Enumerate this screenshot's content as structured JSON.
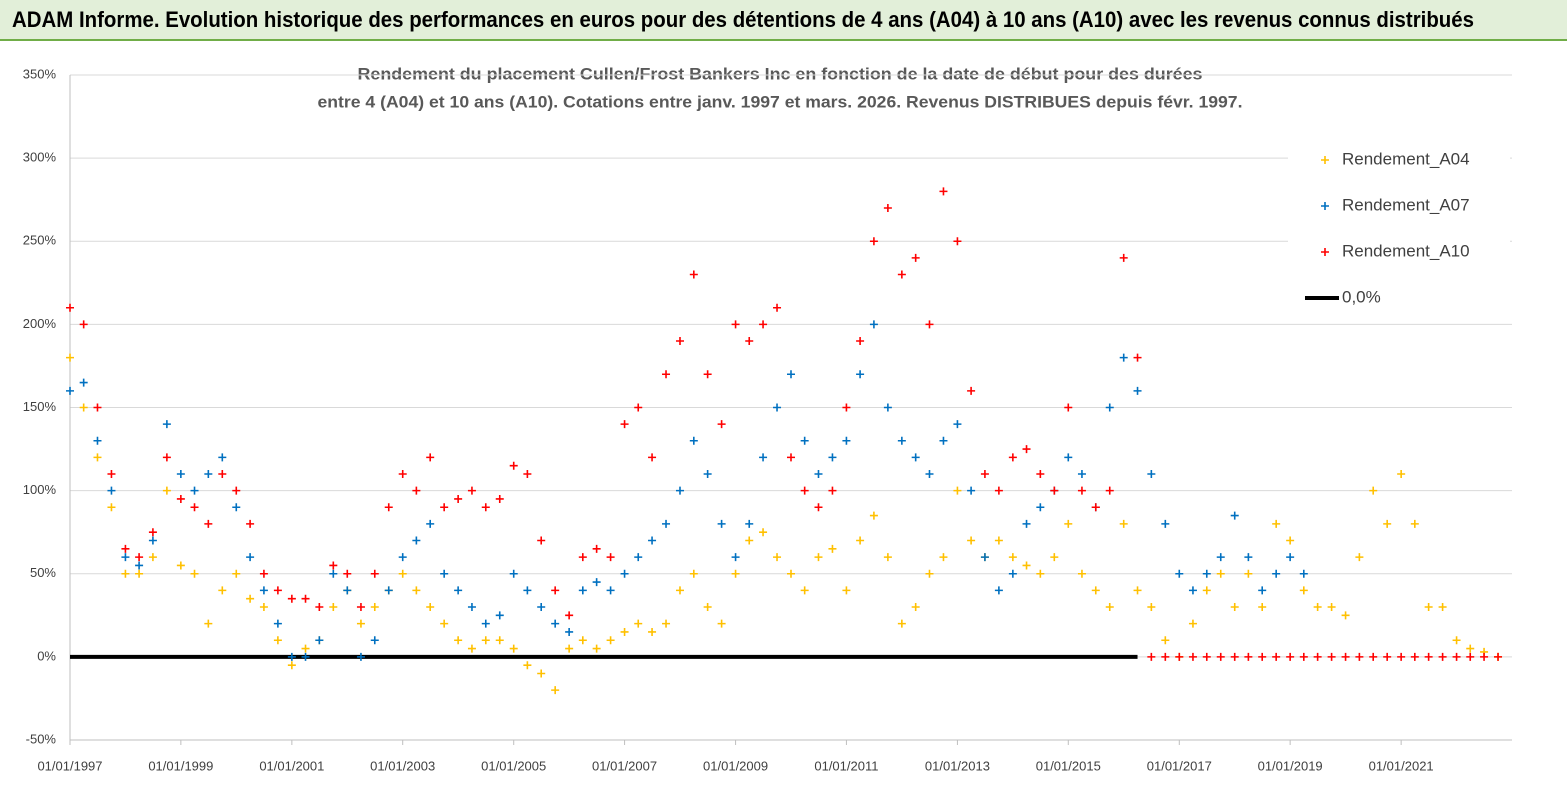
{
  "header": {
    "title": "ADAM Informe. Evolution historique des performances en euros pour des détentions de 4 ans (A04) à 10 ans (A10) avec les revenus connus distribués"
  },
  "chart_data": {
    "type": "scatter",
    "title": [
      "Rendement du placement Cullen/Frost Bankers Inc en fonction de la date de début pour des durées",
      "entre 4 (A04) et 10 ans (A10).  Cotations entre janv. 1997 et mars. 2026. Revenus DISTRIBUES depuis févr. 1997."
    ],
    "xlim": [
      "1997-01-01",
      "2023-01-01"
    ],
    "xticks": [
      {
        "value": "1997-01-01",
        "label": "01/01/1997"
      },
      {
        "value": "1999-01-01",
        "label": "01/01/1999"
      },
      {
        "value": "2001-01-01",
        "label": "01/01/2001"
      },
      {
        "value": "2003-01-01",
        "label": "01/01/2003"
      },
      {
        "value": "2005-01-01",
        "label": "01/01/2005"
      },
      {
        "value": "2007-01-01",
        "label": "01/01/2007"
      },
      {
        "value": "2009-01-01",
        "label": "01/01/2009"
      },
      {
        "value": "2011-01-01",
        "label": "01/01/2011"
      },
      {
        "value": "2013-01-01",
        "label": "01/01/2013"
      },
      {
        "value": "2015-01-01",
        "label": "01/01/2015"
      },
      {
        "value": "2017-01-01",
        "label": "01/01/2017"
      },
      {
        "value": "2019-01-01",
        "label": "01/01/2019"
      },
      {
        "value": "2021-01-01",
        "label": "01/01/2021"
      }
    ],
    "ylim": [
      -50,
      350
    ],
    "yticks": [
      {
        "value": -50,
        "label": "-50%"
      },
      {
        "value": 0,
        "label": "0%"
      },
      {
        "value": 50,
        "label": "50%"
      },
      {
        "value": 100,
        "label": "100%"
      },
      {
        "value": 150,
        "label": "150%"
      },
      {
        "value": 200,
        "label": "200%"
      },
      {
        "value": 250,
        "label": "250%"
      },
      {
        "value": 300,
        "label": "300%"
      },
      {
        "value": 350,
        "label": "350%"
      }
    ],
    "grid": true,
    "legend": "right",
    "x": [
      "1997-01-01",
      "1997-04-01",
      "1997-07-01",
      "1997-10-01",
      "1998-01-01",
      "1998-04-01",
      "1998-07-01",
      "1998-10-01",
      "1999-01-01",
      "1999-04-01",
      "1999-07-01",
      "1999-10-01",
      "2000-01-01",
      "2000-04-01",
      "2000-07-01",
      "2000-10-01",
      "2001-01-01",
      "2001-04-01",
      "2001-07-01",
      "2001-10-01",
      "2002-01-01",
      "2002-04-01",
      "2002-07-01",
      "2002-10-01",
      "2003-01-01",
      "2003-04-01",
      "2003-07-01",
      "2003-10-01",
      "2004-01-01",
      "2004-04-01",
      "2004-07-01",
      "2004-10-01",
      "2005-01-01",
      "2005-04-01",
      "2005-07-01",
      "2005-10-01",
      "2006-01-01",
      "2006-04-01",
      "2006-07-01",
      "2006-10-01",
      "2007-01-01",
      "2007-04-01",
      "2007-07-01",
      "2007-10-01",
      "2008-01-01",
      "2008-04-01",
      "2008-07-01",
      "2008-10-01",
      "2009-01-01",
      "2009-04-01",
      "2009-07-01",
      "2009-10-01",
      "2010-01-01",
      "2010-04-01",
      "2010-07-01",
      "2010-10-01",
      "2011-01-01",
      "2011-04-01",
      "2011-07-01",
      "2011-10-01",
      "2012-01-01",
      "2012-04-01",
      "2012-07-01",
      "2012-10-01",
      "2013-01-01",
      "2013-04-01",
      "2013-07-01",
      "2013-10-01",
      "2014-01-01",
      "2014-04-01",
      "2014-07-01",
      "2014-10-01",
      "2015-01-01",
      "2015-04-01",
      "2015-07-01",
      "2015-10-01",
      "2016-01-01",
      "2016-04-01",
      "2016-07-01",
      "2016-10-01",
      "2017-01-01",
      "2017-04-01",
      "2017-07-01",
      "2017-10-01",
      "2018-01-01",
      "2018-04-01",
      "2018-07-01",
      "2018-10-01",
      "2019-01-01",
      "2019-04-01",
      "2019-07-01",
      "2019-10-01",
      "2020-01-01",
      "2020-04-01",
      "2020-07-01",
      "2020-10-01",
      "2021-01-01",
      "2021-04-01",
      "2021-07-01",
      "2021-10-01",
      "2022-01-01",
      "2022-04-01",
      "2022-07-01",
      "2022-10-01"
    ],
    "series": [
      {
        "name": "Rendement_A04",
        "color": "#ffc000",
        "values": [
          180,
          150,
          120,
          90,
          50,
          50,
          60,
          100,
          55,
          50,
          20,
          40,
          50,
          35,
          30,
          10,
          -5,
          5,
          10,
          30,
          40,
          20,
          30,
          40,
          50,
          40,
          30,
          20,
          10,
          5,
          10,
          10,
          5,
          -5,
          -10,
          -20,
          5,
          10,
          5,
          10,
          15,
          20,
          15,
          20,
          40,
          50,
          30,
          20,
          50,
          70,
          75,
          60,
          50,
          40,
          60,
          65,
          40,
          70,
          85,
          60,
          20,
          30,
          50,
          60,
          100,
          70,
          60,
          70,
          60,
          55,
          50,
          60,
          80,
          50,
          40,
          30,
          80,
          40,
          30,
          10,
          0,
          20,
          40,
          50,
          30,
          50,
          30,
          80,
          70,
          40,
          30,
          30,
          25,
          60,
          100,
          80,
          110,
          80,
          30,
          30,
          10,
          5,
          3,
          0
        ]
      },
      {
        "name": "Rendement_A07",
        "color": "#0070c0",
        "values": [
          160,
          165,
          130,
          100,
          60,
          55,
          70,
          140,
          110,
          100,
          110,
          120,
          90,
          60,
          40,
          20,
          0,
          0,
          10,
          50,
          40,
          0,
          10,
          40,
          60,
          70,
          80,
          50,
          40,
          30,
          20,
          25,
          50,
          40,
          30,
          20,
          15,
          40,
          45,
          40,
          50,
          60,
          70,
          80,
          100,
          130,
          110,
          80,
          60,
          80,
          120,
          150,
          170,
          130,
          110,
          120,
          130,
          170,
          200,
          150,
          130,
          120,
          110,
          130,
          140,
          100,
          60,
          40,
          50,
          80,
          90,
          100,
          120,
          110,
          90,
          150,
          180,
          160,
          110,
          80,
          50,
          40,
          50,
          60,
          85,
          60,
          40,
          50,
          60,
          50,
          null,
          null,
          null,
          null,
          null,
          null,
          null,
          null,
          null,
          null,
          null,
          null,
          null,
          null
        ]
      },
      {
        "name": "Rendement_A10",
        "color": "#ff0000",
        "values": [
          210,
          200,
          150,
          110,
          65,
          60,
          75,
          120,
          95,
          90,
          80,
          110,
          100,
          80,
          50,
          40,
          35,
          35,
          30,
          55,
          50,
          30,
          50,
          90,
          110,
          100,
          120,
          90,
          95,
          100,
          90,
          95,
          115,
          110,
          70,
          40,
          25,
          60,
          65,
          60,
          140,
          150,
          120,
          170,
          190,
          230,
          170,
          140,
          200,
          190,
          200,
          210,
          120,
          100,
          90,
          100,
          150,
          190,
          250,
          270,
          230,
          240,
          200,
          280,
          250,
          160,
          110,
          100,
          120,
          125,
          110,
          100,
          150,
          100,
          90,
          100,
          240,
          180,
          0,
          0,
          0,
          0,
          0,
          0,
          0,
          0,
          0,
          0,
          0,
          0,
          0,
          0,
          0,
          0,
          0,
          0,
          0,
          0,
          0,
          0,
          0,
          0,
          0,
          0
        ]
      },
      {
        "name": "0,0%",
        "color": "#000000",
        "type": "line",
        "x": [
          "1997-01-01",
          "2016-04-01"
        ],
        "values": [
          0,
          0
        ]
      }
    ]
  }
}
